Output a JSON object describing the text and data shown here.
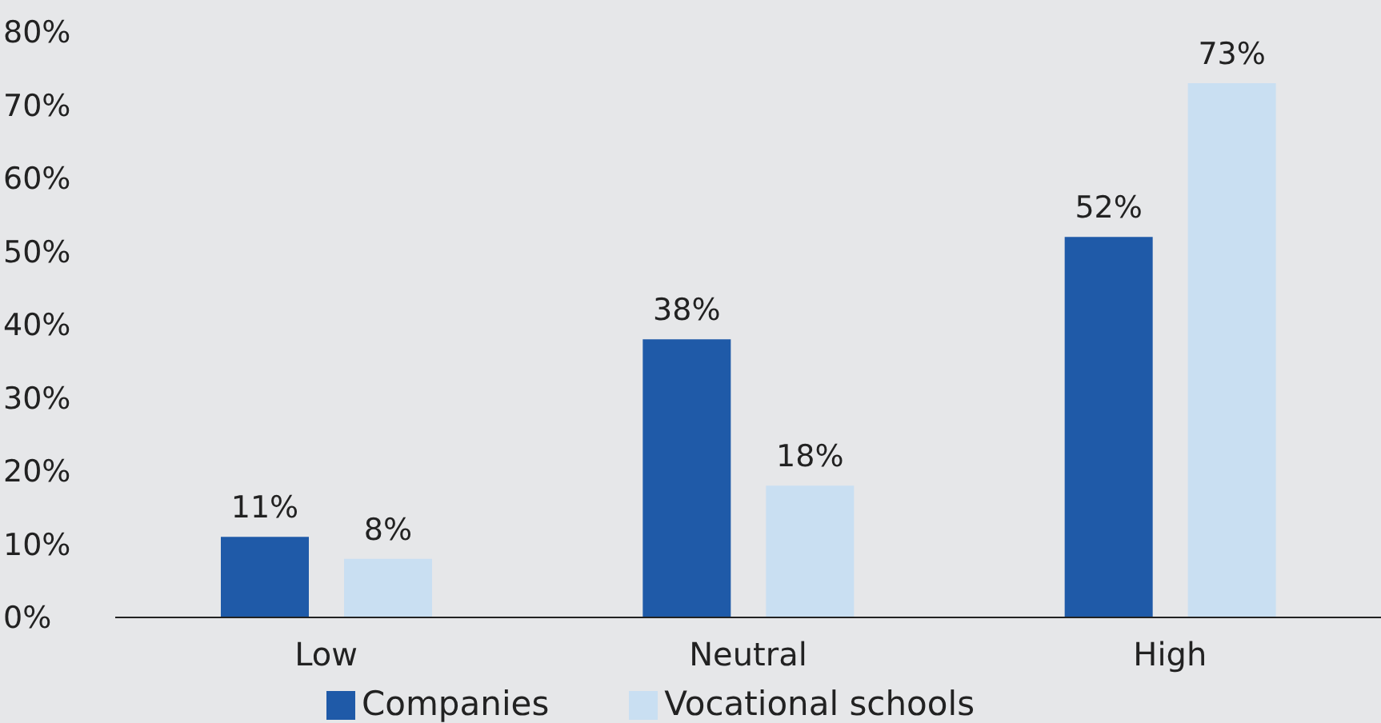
{
  "chart_data": {
    "type": "bar",
    "categories": [
      "Low",
      "Neutral",
      "High"
    ],
    "series": [
      {
        "name": "Companies",
        "color": "#1f5aa8",
        "values": [
          11,
          38,
          52
        ],
        "value_labels": [
          "11%",
          "38%",
          "52%"
        ]
      },
      {
        "name": "Vocational schools",
        "color": "#c9dff2",
        "values": [
          8,
          18,
          73
        ],
        "value_labels": [
          "8%",
          "18%",
          "73%"
        ]
      }
    ],
    "ylim": [
      0,
      80
    ],
    "yticks": [
      {
        "value": 0,
        "label": "0%"
      },
      {
        "value": 10,
        "label": "10%"
      },
      {
        "value": 20,
        "label": "20%"
      },
      {
        "value": 30,
        "label": "30%"
      },
      {
        "value": 40,
        "label": "40%"
      },
      {
        "value": 50,
        "label": "50%"
      },
      {
        "value": 60,
        "label": "60%"
      },
      {
        "value": 70,
        "label": "70%"
      },
      {
        "value": 80,
        "label": "80%"
      }
    ],
    "grid": false,
    "legend": "bottom"
  }
}
